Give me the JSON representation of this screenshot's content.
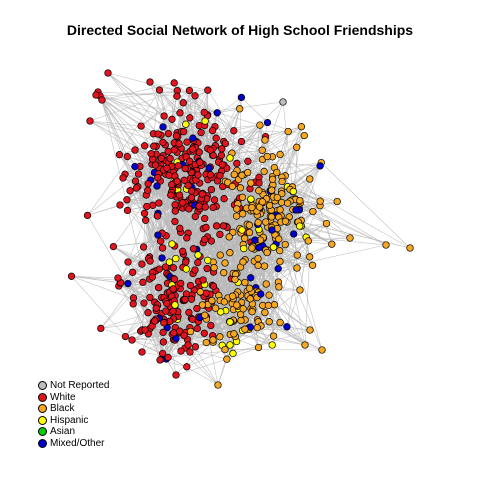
{
  "title": "Directed Social Network of High School Friendships",
  "colors": {
    "not_reported": "#BEBEBE",
    "white": "#E0141E",
    "black": "#F5A623",
    "hispanic": "#FFFF00",
    "asian": "#00CC00",
    "mixed_other": "#0000CC",
    "edge": "#B8B8B8",
    "node_border": "#000000"
  },
  "legend": {
    "items": [
      {
        "label": "Not Reported",
        "key": "not_reported"
      },
      {
        "label": "White",
        "key": "white"
      },
      {
        "label": "Black",
        "key": "black"
      },
      {
        "label": "Hispanic",
        "key": "hispanic"
      },
      {
        "label": "Asian",
        "key": "asian"
      },
      {
        "label": "Mixed/Other",
        "key": "mixed_other"
      }
    ]
  }
}
